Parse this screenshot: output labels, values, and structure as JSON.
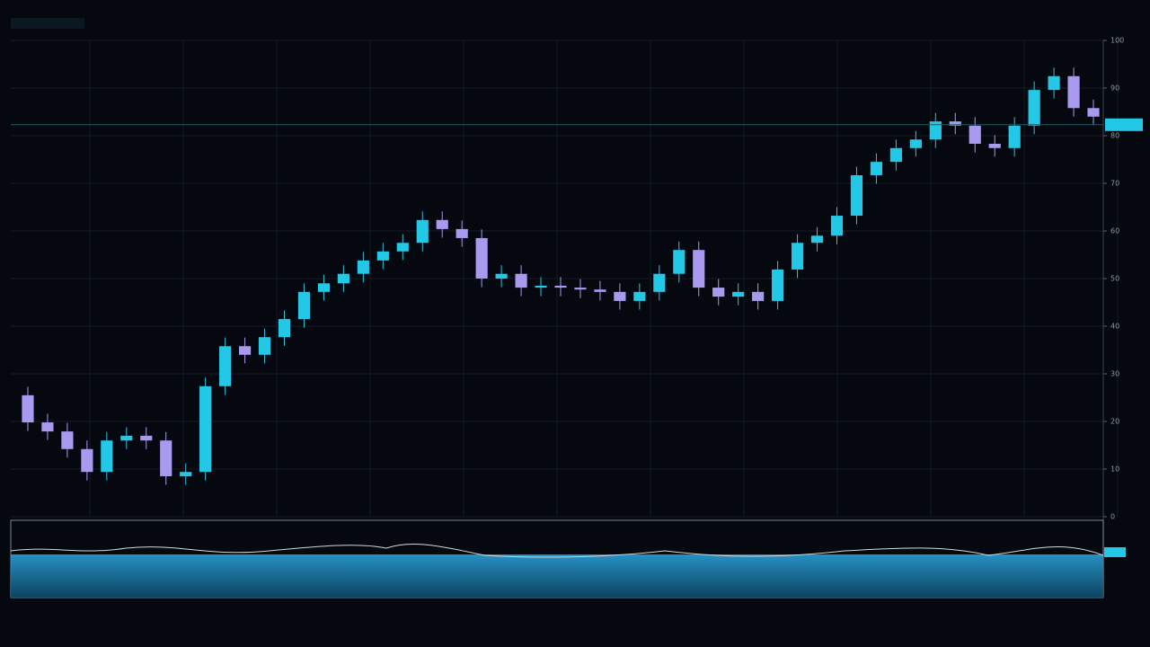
{
  "chart_data": {
    "type": "candlestick",
    "up_color": "#22c8e6",
    "down_color": "#a99af0",
    "open": [
      25.5,
      19.8,
      17.9,
      14.2,
      9.4,
      16,
      17,
      16,
      8.5,
      9.4,
      27.4,
      35.8,
      34,
      37.7,
      41.5,
      47.2,
      49,
      51,
      53.8,
      55.7,
      57.5,
      62.3,
      60.4,
      58.5,
      50,
      51,
      48.1,
      48.5,
      48.1,
      47.7,
      47.2,
      45.3,
      47.2,
      51,
      56,
      48.1,
      46.2,
      47.2,
      45.3,
      51.9,
      57.5,
      59,
      63.2,
      71.7,
      74.5,
      77.4,
      79.2,
      83,
      82.1,
      78.3,
      77.4,
      82.1,
      89.6,
      92.5,
      85.8
    ],
    "high": [
      27.3,
      21.6,
      19.7,
      16.0,
      17.8,
      18.8,
      18.8,
      17.8,
      11.2,
      29.2,
      37.6,
      37.6,
      39.5,
      43.3,
      49.0,
      50.8,
      52.8,
      55.6,
      57.5,
      59.3,
      64.1,
      64.1,
      62.2,
      60.3,
      52.8,
      52.8,
      50.3,
      50.3,
      49.9,
      49.5,
      49.0,
      49.0,
      52.8,
      57.8,
      57.8,
      49.9,
      49.0,
      49.0,
      53.7,
      59.3,
      60.8,
      65.0,
      73.5,
      76.3,
      79.2,
      81.0,
      84.8,
      84.8,
      83.9,
      80.1,
      83.9,
      91.4,
      94.3,
      94.3,
      87.6
    ],
    "low": [
      18.0,
      16.1,
      12.4,
      7.6,
      7.6,
      14.2,
      14.2,
      6.7,
      6.7,
      7.6,
      25.6,
      32.2,
      32.2,
      35.9,
      39.7,
      45.4,
      47.2,
      49.2,
      52.0,
      53.9,
      55.7,
      58.6,
      56.7,
      48.2,
      48.2,
      46.3,
      46.3,
      46.3,
      45.9,
      45.4,
      43.5,
      43.5,
      45.4,
      49.2,
      46.3,
      44.4,
      44.4,
      43.5,
      43.5,
      50.1,
      55.7,
      57.2,
      61.4,
      69.9,
      72.7,
      75.6,
      77.4,
      80.3,
      76.5,
      75.6,
      75.6,
      80.3,
      87.8,
      84.0,
      82.2
    ],
    "close": [
      19.8,
      17.9,
      14.2,
      9.4,
      16,
      17,
      16,
      8.5,
      9.4,
      27.4,
      35.8,
      34,
      37.7,
      41.5,
      47.2,
      49,
      51,
      53.8,
      55.7,
      57.5,
      62.3,
      60.4,
      58.5,
      50,
      51,
      48.1,
      48.5,
      48.1,
      47.7,
      47.2,
      45.3,
      47.2,
      51,
      56,
      48.1,
      46.2,
      47.2,
      45.3,
      51.9,
      57.5,
      59,
      63.2,
      71.7,
      74.5,
      77.4,
      79.2,
      83,
      82.1,
      78.3,
      77.4,
      82.1,
      89.6,
      92.5,
      85.8,
      84
    ],
    "price_line": 82.3,
    "ylim": [
      0,
      100
    ],
    "yticks": [
      0,
      10,
      20,
      30,
      40,
      50,
      60,
      70,
      80,
      90,
      100
    ],
    "grid": true
  }
}
